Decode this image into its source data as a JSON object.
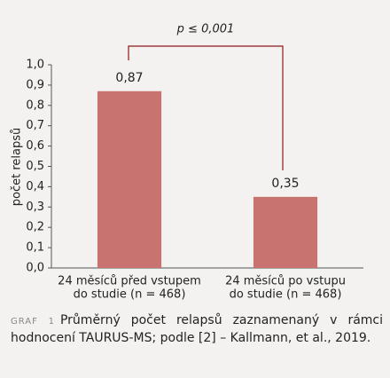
{
  "chart_data": {
    "type": "bar",
    "y_label": "počet relapsů",
    "annotation": "p ≤ 0,001",
    "categories": [
      [
        "24 měsíců před vstupem",
        "do studie (n = 468)"
      ],
      [
        "24 měsíců po vstupu",
        "do studie (n = 468)"
      ]
    ],
    "values": [
      0.87,
      0.35
    ],
    "value_labels": [
      "0,87",
      "0,35"
    ],
    "color": "#c97370",
    "ylim": [
      0,
      1
    ],
    "yticks": [
      {
        "value": 0,
        "label": "0,0"
      },
      {
        "value": 0.1,
        "label": "0,1"
      },
      {
        "value": 0.2,
        "label": "0,2"
      },
      {
        "value": 0.3,
        "label": "0,3"
      },
      {
        "value": 0.4,
        "label": "0,4"
      },
      {
        "value": 0.5,
        "label": "0,5"
      },
      {
        "value": 0.6,
        "label": "0,6"
      },
      {
        "value": 0.7,
        "label": "0,7"
      },
      {
        "value": 0.8,
        "label": "0,8"
      },
      {
        "value": 0.9,
        "label": "0,9"
      },
      {
        "value": 1,
        "label": "1,0"
      }
    ],
    "grid": false,
    "caption_label": "GRAF 1",
    "caption": "Průměrný počet relapsů zaznamenaný v rámci hodnocení TAURUS-MS; podle [2] – Kallmann, et al., 2019."
  }
}
